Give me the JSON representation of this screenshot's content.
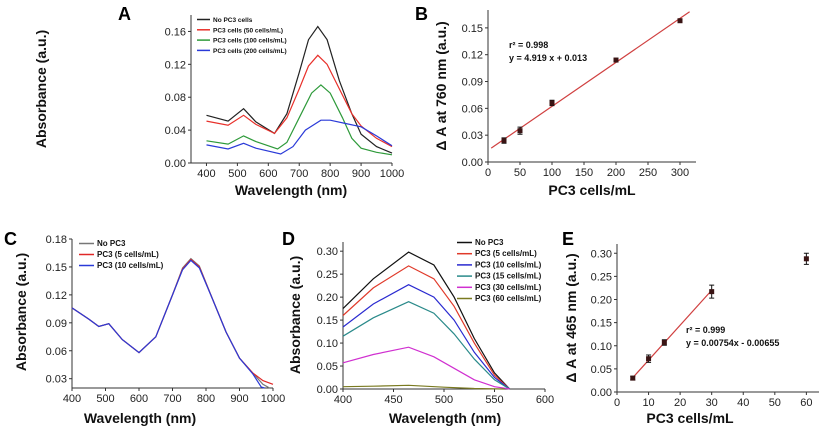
{
  "chart_data": [
    {
      "panel": "A",
      "type": "line",
      "xlabel": "Wavelength (nm)",
      "ylabel": "Absorbance (a.u.)",
      "xlim": [
        350,
        1000
      ],
      "ylim": [
        0,
        0.18
      ],
      "xticks": [
        400,
        500,
        600,
        700,
        800,
        900,
        1000
      ],
      "yticks": [
        0.0,
        0.04,
        0.08,
        0.12,
        0.16
      ],
      "ytick_decimals": 2,
      "legend_position": "top-left",
      "series": [
        {
          "name": "No PC3 cells",
          "color": "#222222",
          "x": [
            400,
            470,
            520,
            560,
            620,
            660,
            700,
            730,
            760,
            790,
            830,
            870,
            900,
            950,
            1000
          ],
          "y": [
            0.058,
            0.051,
            0.066,
            0.05,
            0.036,
            0.06,
            0.11,
            0.15,
            0.166,
            0.15,
            0.1,
            0.06,
            0.035,
            0.02,
            0.012
          ]
        },
        {
          "name": "PC3 cells (50 cells/mL)",
          "color": "#e8302a",
          "x": [
            400,
            470,
            520,
            560,
            620,
            660,
            700,
            730,
            760,
            790,
            830,
            870,
            900,
            950,
            1000
          ],
          "y": [
            0.051,
            0.046,
            0.058,
            0.047,
            0.036,
            0.055,
            0.09,
            0.118,
            0.131,
            0.12,
            0.09,
            0.06,
            0.045,
            0.03,
            0.02
          ]
        },
        {
          "name": "PC3 cells (100 cells/mL)",
          "color": "#2e9a3a",
          "x": [
            400,
            470,
            520,
            560,
            630,
            660,
            700,
            740,
            770,
            800,
            840,
            870,
            900,
            950,
            1000
          ],
          "y": [
            0.027,
            0.023,
            0.033,
            0.026,
            0.017,
            0.025,
            0.055,
            0.085,
            0.095,
            0.085,
            0.055,
            0.03,
            0.018,
            0.013,
            0.01
          ]
        },
        {
          "name": "PC3 cells (200 cells/mL)",
          "color": "#2a3ad8",
          "x": [
            400,
            470,
            520,
            560,
            640,
            680,
            720,
            770,
            800,
            850,
            900,
            950,
            1000
          ],
          "y": [
            0.022,
            0.017,
            0.024,
            0.018,
            0.011,
            0.02,
            0.04,
            0.052,
            0.052,
            0.048,
            0.044,
            0.033,
            0.021
          ]
        }
      ]
    },
    {
      "panel": "B",
      "type": "scatter",
      "xlabel": "PC3 cells/mL",
      "ylabel": "Δ A at 760 nm (a.u.)",
      "xlim": [
        0,
        325
      ],
      "ylim": [
        0,
        0.17
      ],
      "xticks": [
        0,
        50,
        100,
        150,
        200,
        250,
        300
      ],
      "yticks": [
        0.0,
        0.03,
        0.06,
        0.09,
        0.12,
        0.15
      ],
      "ytick_decimals": 2,
      "points": {
        "x": [
          25,
          50,
          100,
          200,
          300
        ],
        "y": [
          0.024,
          0.035,
          0.066,
          0.114,
          0.158
        ],
        "err": [
          0.003,
          0.004,
          0.003,
          0.002,
          0.002
        ]
      },
      "fit": {
        "x": [
          5,
          315
        ],
        "y": [
          0.0155,
          0.168
        ],
        "color": "#d04040"
      },
      "annotations": [
        "r² = 0.998",
        "y = 4.919 x + 0.013"
      ]
    },
    {
      "panel": "C",
      "type": "line",
      "xlabel": "Wavelength (nm)",
      "ylabel": "Absorbance (a.u.)",
      "xlim": [
        400,
        1000
      ],
      "ylim": [
        0.02,
        0.18
      ],
      "xticks": [
        400,
        500,
        600,
        700,
        800,
        900,
        1000
      ],
      "yticks": [
        0.03,
        0.06,
        0.09,
        0.12,
        0.15,
        0.18
      ],
      "ytick_decimals": 2,
      "legend_position": "top-left",
      "series": [
        {
          "name": "No PC3",
          "color": "#777777",
          "x": [
            400,
            450,
            480,
            510,
            550,
            600,
            650,
            700,
            730,
            755,
            780,
            820,
            860,
            900,
            940,
            970,
            990
          ],
          "y": [
            0.106,
            0.094,
            0.086,
            0.089,
            0.072,
            0.058,
            0.075,
            0.12,
            0.149,
            0.159,
            0.151,
            0.115,
            0.08,
            0.052,
            0.036,
            0.024,
            0.02
          ]
        },
        {
          "name": "PC3 (5 cells/mL)",
          "color": "#e02828",
          "x": [
            400,
            450,
            480,
            510,
            550,
            600,
            650,
            700,
            730,
            755,
            780,
            820,
            860,
            900,
            940,
            970,
            1000
          ],
          "y": [
            0.106,
            0.094,
            0.086,
            0.089,
            0.072,
            0.058,
            0.075,
            0.12,
            0.148,
            0.158,
            0.15,
            0.115,
            0.08,
            0.052,
            0.036,
            0.028,
            0.024
          ]
        },
        {
          "name": "PC3 (10 cells/mL)",
          "color": "#2a3ad8",
          "x": [
            400,
            450,
            480,
            510,
            550,
            600,
            650,
            700,
            730,
            755,
            780,
            820,
            860,
            900,
            940,
            965,
            975
          ],
          "y": [
            0.106,
            0.094,
            0.086,
            0.089,
            0.072,
            0.058,
            0.075,
            0.12,
            0.147,
            0.157,
            0.149,
            0.115,
            0.08,
            0.052,
            0.035,
            0.021,
            0.02
          ]
        }
      ]
    },
    {
      "panel": "D",
      "type": "line",
      "xlabel": "Wavelength (nm)",
      "ylabel": "Absorbance (a.u.)",
      "xlim": [
        400,
        600
      ],
      "ylim": [
        0,
        0.32
      ],
      "xticks": [
        400,
        450,
        500,
        550,
        600
      ],
      "yticks": [
        0.0,
        0.05,
        0.1,
        0.15,
        0.2,
        0.25,
        0.3
      ],
      "ytick_decimals": 2,
      "legend_position": "top-right",
      "series": [
        {
          "name": "No PC3",
          "color": "#111111",
          "x": [
            400,
            430,
            465,
            490,
            510,
            530,
            550,
            565
          ],
          "y": [
            0.175,
            0.24,
            0.298,
            0.27,
            0.2,
            0.11,
            0.035,
            0
          ]
        },
        {
          "name": "PC3 (5 cells/mL)",
          "color": "#e03a2a",
          "x": [
            400,
            430,
            465,
            490,
            510,
            530,
            550,
            565
          ],
          "y": [
            0.16,
            0.22,
            0.268,
            0.24,
            0.18,
            0.1,
            0.03,
            0
          ]
        },
        {
          "name": "PC3 (10 cells/mL)",
          "color": "#2a2ad0",
          "x": [
            400,
            430,
            465,
            490,
            510,
            530,
            550,
            565
          ],
          "y": [
            0.135,
            0.185,
            0.227,
            0.2,
            0.15,
            0.08,
            0.025,
            0
          ]
        },
        {
          "name": "PC3 (15 cells/mL)",
          "color": "#2a8a8a",
          "x": [
            400,
            430,
            465,
            490,
            510,
            530,
            550,
            565
          ],
          "y": [
            0.115,
            0.155,
            0.19,
            0.165,
            0.12,
            0.065,
            0.02,
            0
          ]
        },
        {
          "name": "PC3 (30 cells/mL)",
          "color": "#d030d0",
          "x": [
            400,
            430,
            465,
            490,
            510,
            530,
            550,
            565
          ],
          "y": [
            0.057,
            0.075,
            0.091,
            0.07,
            0.045,
            0.02,
            0.005,
            0
          ]
        },
        {
          "name": "PC3 (60 cells/mL)",
          "color": "#7a7a20",
          "x": [
            400,
            430,
            465,
            500,
            530,
            560
          ],
          "y": [
            0.005,
            0.006,
            0.008,
            0.004,
            0.001,
            0
          ]
        }
      ]
    },
    {
      "panel": "E",
      "type": "scatter",
      "xlabel": "PC3 cells/mL",
      "ylabel": "Δ A at 465 nm (a.u.)",
      "xlim": [
        0,
        64
      ],
      "ylim": [
        0,
        0.32
      ],
      "xticks": [
        0,
        10,
        20,
        30,
        40,
        50,
        60
      ],
      "yticks": [
        0.0,
        0.05,
        0.1,
        0.15,
        0.2,
        0.25,
        0.3
      ],
      "ytick_decimals": 2,
      "points": {
        "x": [
          5,
          10,
          15,
          30,
          60
        ],
        "y": [
          0.03,
          0.072,
          0.107,
          0.217,
          0.288
        ],
        "err": [
          0.004,
          0.008,
          0.006,
          0.014,
          0.012
        ]
      },
      "fit": {
        "x": [
          5,
          30
        ],
        "y": [
          0.031,
          0.22
        ],
        "color": "#d04040"
      },
      "annotations": [
        "r² = 0.999",
        "y = 0.00754x - 0.00655"
      ]
    }
  ]
}
